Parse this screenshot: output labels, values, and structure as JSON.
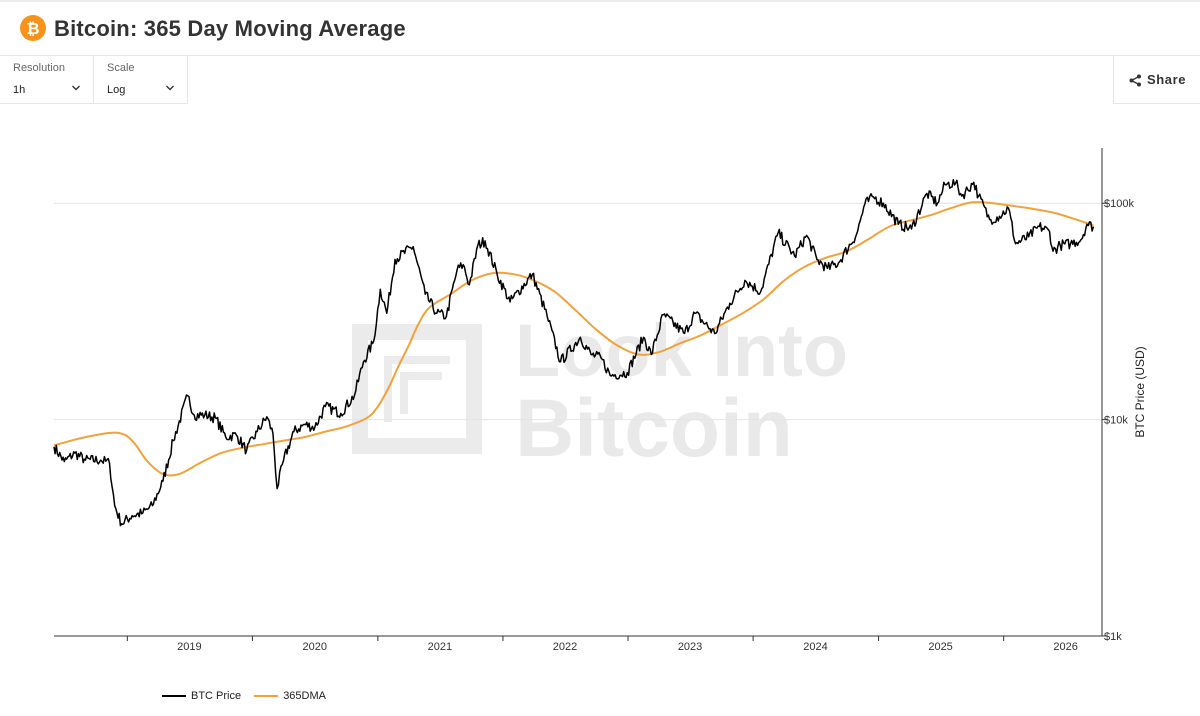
{
  "header": {
    "title": "Bitcoin: 365 Day Moving Average"
  },
  "controls": {
    "resolution": {
      "label": "Resolution",
      "value": "1h"
    },
    "scale": {
      "label": "Scale",
      "value": "Log"
    },
    "share_label": "Share"
  },
  "watermark": {
    "line1": "Look Into",
    "line2": "Bitcoin"
  },
  "colors": {
    "price": "#000000",
    "ma": "#f2a23c",
    "accent": "#f7931a"
  },
  "chart_data": {
    "type": "line",
    "title": "",
    "xlabel": "",
    "ylabel": "BTC Price (USD)",
    "y_scale": "log",
    "ylim": [
      1000,
      180000
    ],
    "xlim": [
      "2018-06-01",
      "2026-10-15"
    ],
    "x_ticks": [
      "2019",
      "2020",
      "2021",
      "2022",
      "2023",
      "2024",
      "2025",
      "2026"
    ],
    "y_ticks": [
      {
        "value": 1000,
        "label": "$1k"
      },
      {
        "value": 10000,
        "label": "$10k"
      },
      {
        "value": 100000,
        "label": "$100k"
      }
    ],
    "grid": "horizontal",
    "legend_position": "bottom-left",
    "series": [
      {
        "name": "BTC Price",
        "color": "#000000",
        "points": [
          [
            "2018-06-01",
            7500
          ],
          [
            "2018-07-01",
            6400
          ],
          [
            "2018-08-01",
            7000
          ],
          [
            "2018-09-01",
            6500
          ],
          [
            "2018-10-15",
            6500
          ],
          [
            "2018-11-10",
            6300
          ],
          [
            "2018-11-25",
            4000
          ],
          [
            "2018-12-15",
            3300
          ],
          [
            "2019-01-15",
            3600
          ],
          [
            "2019-02-15",
            3700
          ],
          [
            "2019-03-15",
            4000
          ],
          [
            "2019-04-15",
            5200
          ],
          [
            "2019-05-15",
            8000
          ],
          [
            "2019-06-26",
            12900
          ],
          [
            "2019-07-15",
            10500
          ],
          [
            "2019-08-15",
            10500
          ],
          [
            "2019-09-15",
            10200
          ],
          [
            "2019-10-15",
            8300
          ],
          [
            "2019-11-15",
            8500
          ],
          [
            "2019-12-15",
            7200
          ],
          [
            "2020-01-15",
            8800
          ],
          [
            "2020-02-12",
            10300
          ],
          [
            "2020-03-01",
            8600
          ],
          [
            "2020-03-13",
            4800
          ],
          [
            "2020-04-01",
            6500
          ],
          [
            "2020-05-01",
            8800
          ],
          [
            "2020-06-01",
            9500
          ],
          [
            "2020-07-01",
            9200
          ],
          [
            "2020-08-01",
            11500
          ],
          [
            "2020-09-15",
            10700
          ],
          [
            "2020-10-25",
            13000
          ],
          [
            "2020-11-20",
            18500
          ],
          [
            "2020-12-20",
            23000
          ],
          [
            "2021-01-08",
            40000
          ],
          [
            "2021-01-27",
            31000
          ],
          [
            "2021-02-20",
            55000
          ],
          [
            "2021-04-14",
            63000
          ],
          [
            "2021-05-19",
            38000
          ],
          [
            "2021-06-22",
            31000
          ],
          [
            "2021-07-20",
            30000
          ],
          [
            "2021-08-20",
            49000
          ],
          [
            "2021-09-07",
            52000
          ],
          [
            "2021-09-25",
            42000
          ],
          [
            "2021-10-20",
            64000
          ],
          [
            "2021-11-10",
            67000
          ],
          [
            "2021-12-15",
            47000
          ],
          [
            "2022-01-22",
            35000
          ],
          [
            "2022-03-28",
            47000
          ],
          [
            "2022-05-10",
            30000
          ],
          [
            "2022-06-18",
            18500
          ],
          [
            "2022-08-15",
            24000
          ],
          [
            "2022-09-15",
            20000
          ],
          [
            "2022-10-15",
            19200
          ],
          [
            "2022-11-10",
            16000
          ],
          [
            "2022-12-30",
            16500
          ],
          [
            "2023-02-15",
            24000
          ],
          [
            "2023-03-10",
            20000
          ],
          [
            "2023-04-14",
            30500
          ],
          [
            "2023-06-15",
            25000
          ],
          [
            "2023-07-15",
            31000
          ],
          [
            "2023-09-11",
            25000
          ],
          [
            "2023-10-25",
            34500
          ],
          [
            "2023-12-08",
            44000
          ],
          [
            "2024-01-23",
            39000
          ],
          [
            "2024-03-14",
            73000
          ],
          [
            "2024-05-01",
            57000
          ],
          [
            "2024-06-05",
            71000
          ],
          [
            "2024-07-05",
            55000
          ],
          [
            "2024-08-05",
            50000
          ],
          [
            "2024-09-06",
            53000
          ],
          [
            "2024-10-29",
            72000
          ],
          [
            "2024-11-22",
            99000
          ],
          [
            "2024-12-17",
            107000
          ],
          [
            "2025-01-15",
            100000
          ],
          [
            "2025-02-28",
            80000
          ],
          [
            "2025-04-07",
            76000
          ],
          [
            "2025-05-22",
            111000
          ],
          [
            "2025-06-22",
            100000
          ],
          [
            "2025-07-14",
            122000
          ],
          [
            "2025-08-14",
            124000
          ],
          [
            "2025-09-01",
            108000
          ],
          [
            "2025-10-06",
            125000
          ],
          [
            "2025-10-20",
            108000
          ],
          [
            "2025-11-21",
            84000
          ],
          [
            "2025-12-20",
            87000
          ],
          [
            "2026-01-15",
            95000
          ],
          [
            "2026-02-05",
            65000
          ],
          [
            "2026-03-15",
            70000
          ],
          [
            "2026-04-15",
            78000
          ],
          [
            "2026-05-15",
            74000
          ],
          [
            "2026-05-25",
            60000
          ],
          [
            "2026-06-15",
            64000
          ],
          [
            "2026-07-15",
            65000
          ],
          [
            "2026-08-15",
            68000
          ],
          [
            "2026-09-01",
            80000
          ],
          [
            "2026-09-20",
            78000
          ]
        ]
      },
      {
        "name": "365DMA",
        "color": "#f2a23c",
        "points": [
          [
            "2018-06-01",
            7600
          ],
          [
            "2018-09-01",
            8300
          ],
          [
            "2018-12-01",
            8700
          ],
          [
            "2019-01-15",
            8000
          ],
          [
            "2019-03-01",
            6400
          ],
          [
            "2019-04-15",
            5600
          ],
          [
            "2019-06-01",
            5600
          ],
          [
            "2019-08-01",
            6300
          ],
          [
            "2019-10-01",
            7000
          ],
          [
            "2019-12-01",
            7400
          ],
          [
            "2020-02-01",
            7700
          ],
          [
            "2020-04-01",
            8000
          ],
          [
            "2020-06-01",
            8300
          ],
          [
            "2020-08-01",
            8800
          ],
          [
            "2020-10-01",
            9300
          ],
          [
            "2020-12-01",
            10200
          ],
          [
            "2021-01-01",
            11500
          ],
          [
            "2021-02-01",
            14000
          ],
          [
            "2021-03-01",
            17500
          ],
          [
            "2021-04-01",
            22000
          ],
          [
            "2021-05-01",
            28000
          ],
          [
            "2021-06-01",
            33000
          ],
          [
            "2021-08-01",
            38000
          ],
          [
            "2021-10-01",
            44000
          ],
          [
            "2021-12-01",
            47500
          ],
          [
            "2022-02-01",
            47000
          ],
          [
            "2022-04-01",
            44000
          ],
          [
            "2022-06-01",
            39000
          ],
          [
            "2022-08-01",
            32000
          ],
          [
            "2022-10-01",
            26000
          ],
          [
            "2022-12-01",
            22000
          ],
          [
            "2023-02-01",
            20000
          ],
          [
            "2023-04-01",
            20500
          ],
          [
            "2023-06-01",
            22500
          ],
          [
            "2023-08-01",
            24500
          ],
          [
            "2023-10-01",
            27500
          ],
          [
            "2023-12-01",
            31000
          ],
          [
            "2024-02-01",
            36000
          ],
          [
            "2024-04-01",
            44000
          ],
          [
            "2024-06-01",
            51000
          ],
          [
            "2024-08-01",
            56000
          ],
          [
            "2024-10-01",
            60000
          ],
          [
            "2024-12-01",
            68000
          ],
          [
            "2025-02-01",
            78000
          ],
          [
            "2025-04-01",
            83000
          ],
          [
            "2025-06-01",
            88000
          ],
          [
            "2025-08-01",
            95000
          ],
          [
            "2025-10-01",
            101000
          ],
          [
            "2025-12-01",
            100000
          ],
          [
            "2026-02-01",
            97000
          ],
          [
            "2026-04-01",
            94000
          ],
          [
            "2026-06-01",
            90000
          ],
          [
            "2026-08-01",
            84000
          ],
          [
            "2026-09-20",
            79000
          ]
        ]
      }
    ]
  }
}
